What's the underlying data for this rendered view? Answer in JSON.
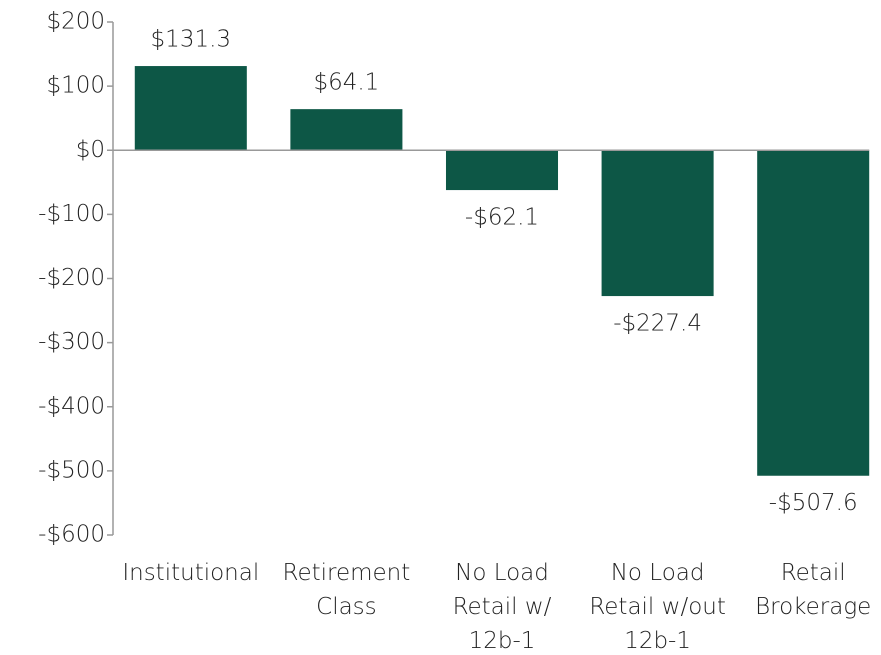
{
  "chart_data": {
    "type": "bar",
    "categories": [
      "Institutional",
      "Retirement\nClass",
      "No Load\nRetail w/\n12b-1",
      "No Load\nRetail w/out\n12b-1",
      "Retail\nBrokerage"
    ],
    "values": [
      131.3,
      64.1,
      -62.1,
      -227.4,
      -507.6
    ],
    "value_labels": [
      "$131.3",
      "$64.1",
      "-$62.1",
      "-$227.4",
      "-$507.6"
    ],
    "color": "#0d5746",
    "ylim": [
      -600,
      200
    ],
    "yticks": [
      {
        "value": -600,
        "label": "-$600"
      },
      {
        "value": -500,
        "label": "-$500"
      },
      {
        "value": -400,
        "label": "-$400"
      },
      {
        "value": -300,
        "label": "-$300"
      },
      {
        "value": -200,
        "label": "-$200"
      },
      {
        "value": -100,
        "label": "-$100"
      },
      {
        "value": 0,
        "label": "$0"
      },
      {
        "value": 100,
        "label": "$100"
      },
      {
        "value": 200,
        "label": "$200"
      }
    ],
    "grid": false
  }
}
